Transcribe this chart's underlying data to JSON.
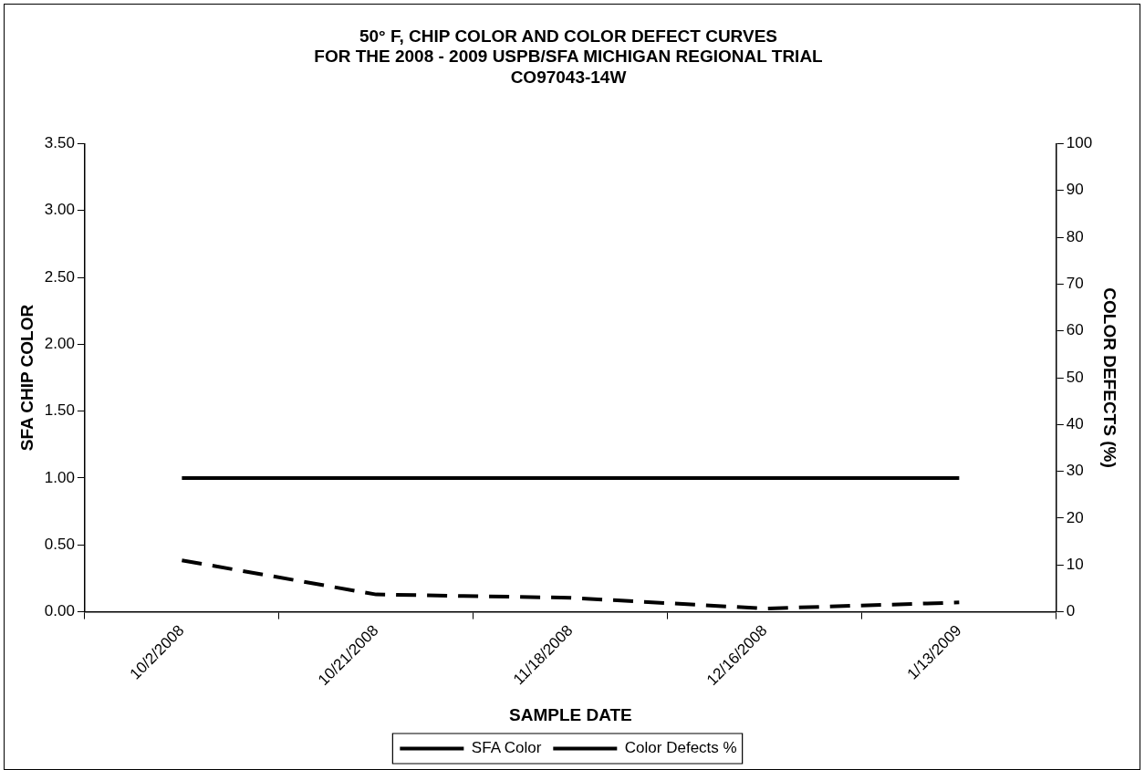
{
  "chart_data": {
    "type": "line",
    "title": [
      "50° F, CHIP COLOR AND COLOR DEFECT CURVES",
      "FOR THE 2008 - 2009 USPB/SFA MICHIGAN REGIONAL TRIAL",
      "CO97043-14W"
    ],
    "xlabel": "SAMPLE DATE",
    "ylabel": "SFA CHIP COLOR",
    "y2label": "COLOR DEFECTS (%)",
    "categories": [
      "10/2/2008",
      "10/21/2008",
      "11/18/2008",
      "12/16/2008",
      "1/13/2009"
    ],
    "series": [
      {
        "name": "SFA Color",
        "color": "#000000",
        "values": [
          1,
          1,
          1,
          1,
          1
        ],
        "line_style": "solid"
      },
      {
        "name": "Color Defects %",
        "color": "#000000",
        "values": [
          11,
          3.7,
          3,
          0.7,
          2
        ],
        "axis": "y2",
        "line_style": "dashed"
      }
    ],
    "ylim": [
      0,
      3.5
    ],
    "yticks": [
      {
        "value": 0,
        "label": "0.00"
      },
      {
        "value": 0.5,
        "label": "0.50"
      },
      {
        "value": 1,
        "label": "1.00"
      },
      {
        "value": 1.5,
        "label": "1.50"
      },
      {
        "value": 2,
        "label": "2.00"
      },
      {
        "value": 2.5,
        "label": "2.50"
      },
      {
        "value": 3,
        "label": "3.00"
      },
      {
        "value": 3.5,
        "label": "3.50"
      }
    ],
    "y2lim": [
      0,
      100
    ],
    "y2ticks": [
      0,
      10,
      20,
      30,
      40,
      50,
      60,
      70,
      80,
      90,
      100
    ],
    "grid": false,
    "legend": "bottom",
    "marker": "none"
  }
}
